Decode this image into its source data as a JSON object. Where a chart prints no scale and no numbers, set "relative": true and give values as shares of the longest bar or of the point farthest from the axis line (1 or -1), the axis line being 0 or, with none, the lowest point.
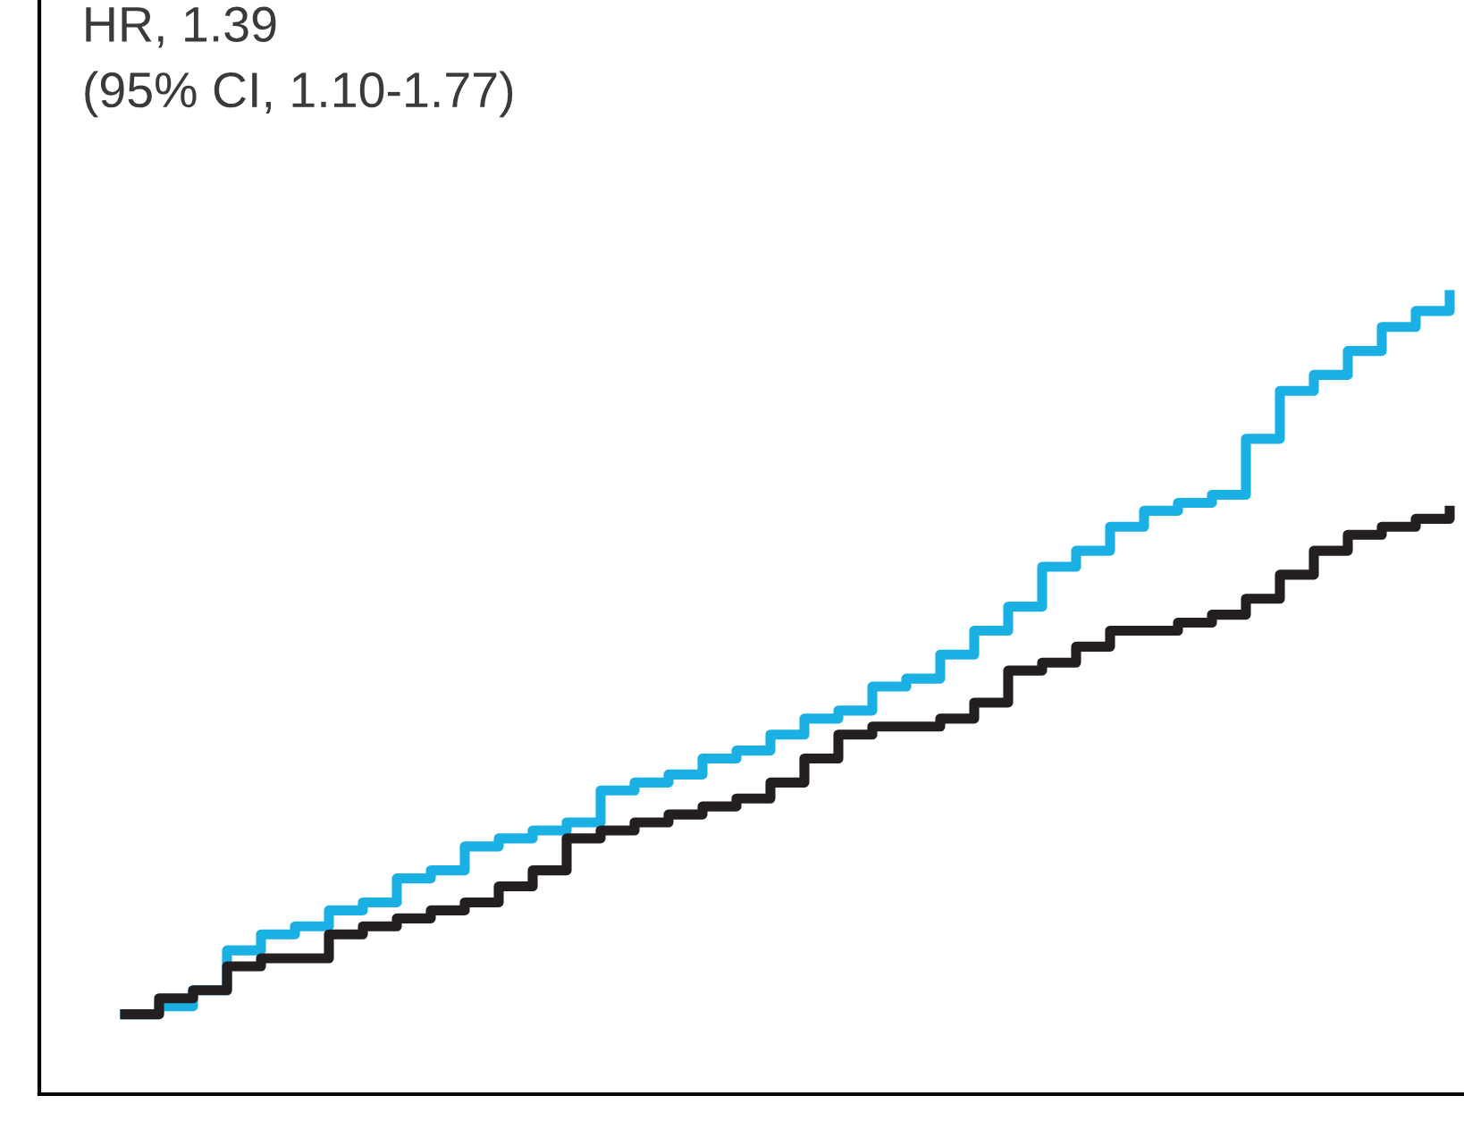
{
  "chart_data": {
    "type": "step",
    "relative": true,
    "line_style": "solid",
    "marker": "none",
    "grid": false,
    "annotations": [
      "HR, 1.39",
      "(95% CI, 1.10-1.77)"
    ],
    "categories": [
      null,
      null,
      null,
      null,
      null,
      null,
      null,
      null,
      null,
      null,
      null,
      null,
      null,
      null,
      null,
      null,
      null,
      null,
      null,
      null,
      null,
      null,
      null,
      null,
      null,
      null,
      null,
      null,
      null,
      null,
      null,
      null,
      null,
      null,
      null,
      null,
      null,
      null,
      null,
      null
    ],
    "series": [
      {
        "color": "#1ab0e4",
        "values": [
          0.1,
          0.11,
          0.13,
          0.18,
          0.2,
          0.21,
          0.23,
          0.24,
          0.27,
          0.28,
          0.31,
          0.32,
          0.33,
          0.34,
          0.38,
          0.39,
          0.4,
          0.42,
          0.43,
          0.45,
          0.47,
          0.48,
          0.51,
          0.52,
          0.55,
          0.58,
          0.61,
          0.66,
          0.68,
          0.71,
          0.73,
          0.74,
          0.75,
          0.82,
          0.88,
          0.9,
          0.93,
          0.96,
          0.98,
          1.0
        ]
      },
      {
        "color": "#231f20",
        "values": [
          0.1,
          0.12,
          0.13,
          0.16,
          0.17,
          0.17,
          0.2,
          0.21,
          0.22,
          0.23,
          0.24,
          0.26,
          0.28,
          0.32,
          0.33,
          0.34,
          0.35,
          0.36,
          0.37,
          0.39,
          0.42,
          0.45,
          0.46,
          0.46,
          0.47,
          0.49,
          0.53,
          0.54,
          0.56,
          0.58,
          0.58,
          0.59,
          0.6,
          0.62,
          0.65,
          0.68,
          0.7,
          0.71,
          0.72,
          0.73
        ]
      }
    ]
  }
}
